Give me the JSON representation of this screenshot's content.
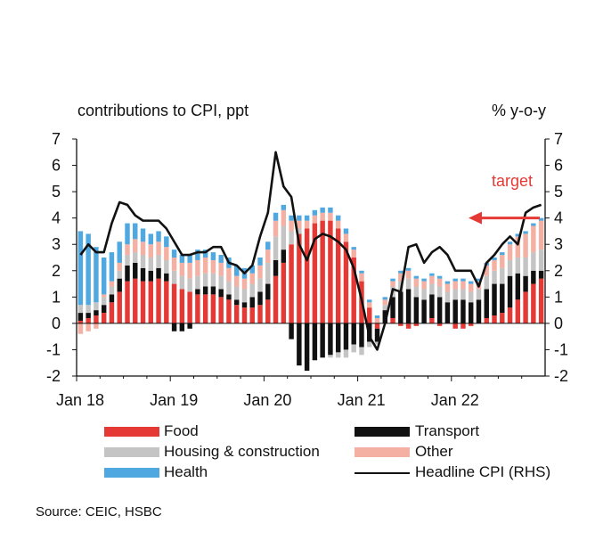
{
  "chart_data": {
    "type": "bar",
    "stacked": true,
    "left_axis_title": "contributions  to CPI, ppt",
    "right_axis_title": "% y-o-y",
    "ylim_left": [
      -2,
      7
    ],
    "ylim_right": [
      -2,
      7
    ],
    "yticks": [
      7,
      6,
      5,
      4,
      3,
      2,
      1,
      0,
      -1,
      -2
    ],
    "x_tick_labels": [
      "Jan 18",
      "Jan 19",
      "Jan 20",
      "Jan 21",
      "Jan 22"
    ],
    "x_tick_month_index": [
      0,
      12,
      24,
      36,
      48
    ],
    "n_months": 60,
    "target_label": "target",
    "target_value": 4.0,
    "series": [
      {
        "name": "Food",
        "color": "#e53935",
        "values": [
          0.1,
          0.2,
          0.3,
          0.4,
          0.8,
          1.2,
          1.6,
          1.7,
          1.6,
          1.6,
          1.7,
          1.6,
          1.5,
          1.3,
          1.2,
          1.1,
          1.1,
          1.1,
          1.0,
          0.9,
          0.7,
          0.6,
          0.6,
          0.7,
          0.9,
          1.8,
          2.3,
          3.0,
          3.4,
          3.6,
          3.8,
          3.9,
          3.9,
          3.6,
          3.1,
          2.5,
          1.6,
          0.6,
          -0.2,
          0.0,
          0.2,
          -0.1,
          -0.2,
          -0.1,
          0.0,
          0.2,
          -0.1,
          0.0,
          -0.2,
          -0.2,
          -0.1,
          0.0,
          0.2,
          0.3,
          0.4,
          0.6,
          0.9,
          1.2,
          1.5,
          1.7
        ]
      },
      {
        "name": "Transport",
        "color": "#111111",
        "values": [
          0.3,
          0.2,
          0.2,
          0.3,
          0.3,
          0.5,
          0.6,
          0.6,
          0.5,
          0.4,
          0.4,
          0.3,
          -0.3,
          -0.3,
          -0.2,
          0.2,
          0.3,
          0.3,
          0.3,
          0.2,
          0.2,
          0.2,
          0.4,
          0.5,
          0.6,
          0.6,
          0.5,
          -0.6,
          -1.6,
          -1.8,
          -1.4,
          -1.3,
          -1.2,
          -1.1,
          -1.0,
          -0.8,
          -0.9,
          -0.7,
          -0.5,
          0.5,
          0.8,
          1.2,
          1.3,
          1.0,
          0.9,
          0.9,
          1.0,
          0.8,
          0.9,
          0.9,
          0.8,
          0.9,
          1.1,
          1.2,
          1.1,
          1.2,
          1.0,
          0.6,
          0.5,
          0.3
        ]
      },
      {
        "name": "Housing & construction",
        "color": "#c4c4c4",
        "values": [
          0.3,
          0.3,
          0.3,
          0.3,
          0.3,
          0.3,
          0.4,
          0.4,
          0.5,
          0.5,
          0.5,
          0.5,
          0.5,
          0.5,
          0.5,
          0.5,
          0.5,
          0.5,
          0.5,
          0.5,
          0.5,
          0.5,
          0.5,
          0.5,
          0.8,
          0.9,
          0.9,
          0.5,
          0.2,
          0.0,
          0.0,
          0.0,
          -0.1,
          -0.2,
          -0.3,
          -0.3,
          -0.3,
          -0.2,
          -0.1,
          0.2,
          0.4,
          0.4,
          0.4,
          0.4,
          0.4,
          0.4,
          0.4,
          0.4,
          0.4,
          0.4,
          0.4,
          0.4,
          0.5,
          0.5,
          0.6,
          0.6,
          0.6,
          0.7,
          0.7,
          0.8
        ]
      },
      {
        "name": "Other",
        "color": "#f4b0a2",
        "values": [
          -0.4,
          -0.3,
          -0.2,
          0.1,
          0.2,
          0.3,
          0.4,
          0.5,
          0.5,
          0.5,
          0.5,
          0.5,
          0.5,
          0.5,
          0.6,
          0.6,
          0.6,
          0.5,
          0.5,
          0.5,
          0.4,
          0.4,
          0.4,
          0.5,
          0.5,
          0.6,
          0.6,
          0.4,
          0.3,
          0.3,
          0.3,
          0.3,
          0.3,
          0.3,
          0.3,
          0.3,
          0.3,
          0.2,
          0.2,
          0.2,
          0.2,
          0.3,
          0.3,
          0.3,
          0.3,
          0.3,
          0.3,
          0.3,
          0.3,
          0.3,
          0.3,
          0.3,
          0.4,
          0.4,
          0.5,
          0.6,
          0.8,
          0.9,
          1.0,
          1.1
        ]
      },
      {
        "name": "Health",
        "color": "#4fa8e0",
        "values": [
          2.8,
          2.7,
          2.1,
          1.4,
          1.1,
          0.8,
          0.8,
          0.6,
          0.5,
          0.4,
          0.4,
          0.4,
          0.3,
          0.3,
          0.3,
          0.4,
          0.3,
          0.3,
          0.3,
          0.4,
          0.4,
          0.4,
          0.3,
          0.3,
          0.3,
          0.3,
          0.2,
          0.2,
          0.2,
          0.2,
          0.2,
          0.2,
          0.2,
          0.2,
          0.2,
          0.1,
          0.1,
          0.1,
          0.1,
          0.1,
          0.1,
          0.1,
          0.1,
          0.1,
          0.1,
          0.1,
          0.1,
          0.1,
          0.1,
          0.1,
          0.1,
          0.1,
          0.1,
          0.1,
          0.1,
          0.1,
          0.1,
          0.1,
          0.1,
          0.1
        ]
      }
    ],
    "line": {
      "name": "Headline CPI (RHS)",
      "color": "#111111",
      "axis": "right",
      "values": [
        2.6,
        3.0,
        2.7,
        2.7,
        3.8,
        4.6,
        4.5,
        4.1,
        3.9,
        3.9,
        3.9,
        3.6,
        3.1,
        2.6,
        2.6,
        2.7,
        2.7,
        2.9,
        2.9,
        2.3,
        2.2,
        1.9,
        2.2,
        3.3,
        4.2,
        6.5,
        5.2,
        4.8,
        3.0,
        2.4,
        3.2,
        3.4,
        3.3,
        3.1,
        2.8,
        2.1,
        0.9,
        -0.5,
        -1.0,
        0.0,
        1.3,
        1.2,
        2.9,
        3.0,
        2.3,
        2.7,
        2.9,
        2.6,
        2.0,
        2.0,
        2.0,
        1.4,
        2.3,
        2.6,
        3.0,
        3.3,
        3.0,
        4.2,
        4.4,
        4.5
      ]
    }
  },
  "legend": {
    "food": "Food",
    "transport": "Transport",
    "housing": "Housing & construction",
    "other": "Other",
    "health": "Health",
    "headline": "Headline CPI (RHS)"
  },
  "source": "Source: CEIC, HSBC"
}
